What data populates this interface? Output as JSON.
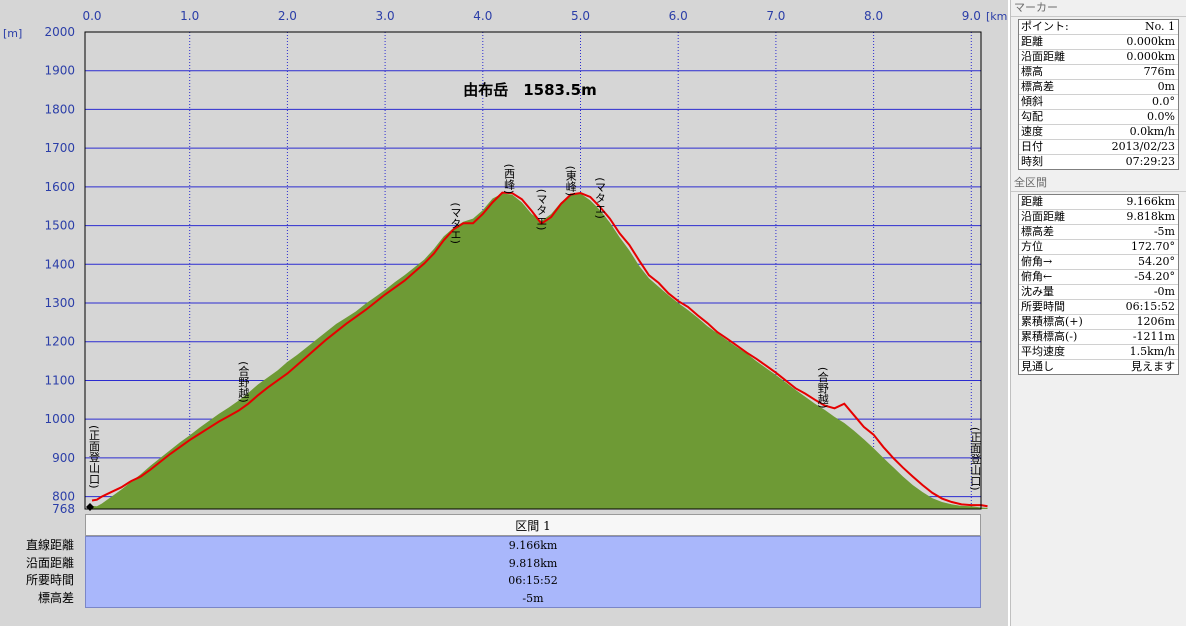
{
  "chart_data": {
    "type": "area",
    "title": "由布岳　1583.5m",
    "x_unit": "[km]",
    "y_unit": "[m]",
    "xlim": [
      0,
      9.166
    ],
    "ylim": [
      768,
      2000
    ],
    "x_ticks": [
      "0.0",
      "1.0",
      "2.0",
      "3.0",
      "4.0",
      "5.0",
      "6.0",
      "7.0",
      "8.0",
      "9.0"
    ],
    "y_ticks": [
      "2000",
      "1900",
      "1800",
      "1700",
      "1600",
      "1500",
      "1400",
      "1300",
      "1200",
      "1100",
      "1000",
      "900",
      "800"
    ],
    "y_min_label": "768",
    "grid": true,
    "series": [
      {
        "name": "",
        "color": "#6e9a35",
        "x": [
          0,
          0.05,
          0.1,
          0.2,
          0.3,
          0.4,
          0.5,
          0.6,
          0.7,
          0.8,
          0.9,
          1.0,
          1.1,
          1.2,
          1.3,
          1.4,
          1.5,
          1.6,
          1.7,
          1.8,
          1.9,
          2.0,
          2.1,
          2.2,
          2.3,
          2.4,
          2.5,
          2.6,
          2.7,
          2.8,
          2.9,
          3.0,
          3.1,
          3.2,
          3.3,
          3.4,
          3.5,
          3.6,
          3.7,
          3.8,
          3.9,
          4.0,
          4.1,
          4.2,
          4.3,
          4.4,
          4.5,
          4.6,
          4.7,
          4.8,
          4.9,
          5.0,
          5.1,
          5.2,
          5.3,
          5.4,
          5.5,
          5.6,
          5.7,
          5.8,
          5.9,
          6.0,
          6.1,
          6.2,
          6.3,
          6.4,
          6.5,
          6.6,
          6.7,
          6.8,
          6.9,
          7.0,
          7.1,
          7.2,
          7.3,
          7.4,
          7.5,
          7.6,
          7.7,
          7.8,
          7.9,
          8.0,
          8.1,
          8.2,
          8.3,
          8.4,
          8.5,
          8.6,
          8.7,
          8.8,
          8.9,
          9.0,
          9.1,
          9.166
        ],
        "y": [
          776,
          775,
          782,
          800,
          818,
          838,
          858,
          880,
          900,
          920,
          940,
          958,
          978,
          996,
          1014,
          1030,
          1048,
          1068,
          1090,
          1108,
          1126,
          1148,
          1166,
          1186,
          1206,
          1226,
          1246,
          1262,
          1278,
          1298,
          1316,
          1334,
          1354,
          1372,
          1392,
          1412,
          1440,
          1472,
          1494,
          1510,
          1518,
          1540,
          1570,
          1583,
          1580,
          1560,
          1530,
          1512,
          1530,
          1560,
          1580,
          1583,
          1565,
          1540,
          1508,
          1470,
          1436,
          1396,
          1364,
          1342,
          1320,
          1300,
          1282,
          1262,
          1240,
          1222,
          1204,
          1186,
          1170,
          1150,
          1132,
          1114,
          1095,
          1076,
          1058,
          1040,
          1024,
          1006,
          990,
          970,
          948,
          925,
          900,
          876,
          852,
          830,
          812,
          796,
          786,
          780,
          776,
          775,
          772,
          771
        ]
      },
      {
        "name": "",
        "color": "#e60000",
        "x": [
          0,
          0.05,
          0.1,
          0.2,
          0.3,
          0.4,
          0.5,
          0.6,
          0.7,
          0.8,
          0.9,
          1.0,
          1.1,
          1.2,
          1.3,
          1.4,
          1.5,
          1.6,
          1.7,
          1.8,
          1.9,
          2.0,
          2.1,
          2.2,
          2.3,
          2.4,
          2.5,
          2.6,
          2.7,
          2.8,
          2.9,
          3.0,
          3.1,
          3.2,
          3.3,
          3.4,
          3.5,
          3.6,
          3.7,
          3.8,
          3.9,
          4.0,
          4.1,
          4.2,
          4.3,
          4.4,
          4.5,
          4.6,
          4.7,
          4.8,
          4.9,
          5.0,
          5.1,
          5.2,
          5.3,
          5.4,
          5.5,
          5.6,
          5.7,
          5.8,
          5.9,
          6.0,
          6.1,
          6.2,
          6.3,
          6.4,
          6.5,
          6.6,
          6.7,
          6.8,
          6.9,
          7.0,
          7.1,
          7.2,
          7.3,
          7.4,
          7.5,
          7.6,
          7.7,
          7.8,
          7.9,
          8.0,
          8.1,
          8.2,
          8.3,
          8.4,
          8.5,
          8.6,
          8.7,
          8.8,
          8.9,
          9.0,
          9.1,
          9.166
        ],
        "y": [
          790,
          792,
          800,
          812,
          824,
          840,
          852,
          870,
          890,
          910,
          928,
          946,
          962,
          978,
          994,
          1008,
          1022,
          1040,
          1062,
          1082,
          1100,
          1118,
          1140,
          1162,
          1184,
          1206,
          1226,
          1246,
          1264,
          1282,
          1302,
          1322,
          1340,
          1358,
          1380,
          1402,
          1428,
          1462,
          1490,
          1506,
          1506,
          1530,
          1560,
          1585,
          1584,
          1568,
          1538,
          1505,
          1522,
          1556,
          1580,
          1584,
          1574,
          1548,
          1518,
          1480,
          1450,
          1410,
          1372,
          1352,
          1325,
          1305,
          1290,
          1268,
          1248,
          1225,
          1208,
          1190,
          1172,
          1156,
          1138,
          1120,
          1100,
          1080,
          1066,
          1050,
          1035,
          1028,
          1040,
          1010,
          980,
          960,
          928,
          900,
          875,
          852,
          830,
          810,
          795,
          786,
          780,
          778,
          778,
          775
        ]
      }
    ],
    "annotations": [
      {
        "text": "(正面登山口)",
        "x": 0.02,
        "y": 985
      },
      {
        "text": "(合野越)",
        "x": 1.55,
        "y": 1150
      },
      {
        "text": "(マタエ)",
        "x": 3.72,
        "y": 1560
      },
      {
        "text": "(西峰)",
        "x": 4.27,
        "y": 1660
      },
      {
        "text": "(マタエ)",
        "x": 4.6,
        "y": 1595
      },
      {
        "text": "(東峰)",
        "x": 4.9,
        "y": 1655
      },
      {
        "text": "(マタエ)",
        "x": 5.2,
        "y": 1625
      },
      {
        "text": "(合野越)",
        "x": 7.48,
        "y": 1135
      },
      {
        "text": "(正面登山口)",
        "x": 9.04,
        "y": 980
      }
    ]
  },
  "marker_panel": {
    "title": "マーカー",
    "rows": [
      {
        "label": "ポイント:",
        "value": "No. 1"
      },
      {
        "label": "距離",
        "value": "0.000km"
      },
      {
        "label": "沿面距離",
        "value": "0.000km"
      },
      {
        "label": "標高",
        "value": "776m"
      },
      {
        "label": "標高差",
        "value": "0m"
      },
      {
        "label": "傾斜",
        "value": "0.0°"
      },
      {
        "label": "勾配",
        "value": "0.0%"
      },
      {
        "label": "速度",
        "value": "0.0km/h"
      },
      {
        "label": "日付",
        "value": "2013/02/23"
      },
      {
        "label": "時刻",
        "value": "07:29:23"
      }
    ]
  },
  "total_panel": {
    "title": "全区間",
    "rows": [
      {
        "label": "距離",
        "value": "9.166km"
      },
      {
        "label": "沿面距離",
        "value": "9.818km"
      },
      {
        "label": "標高差",
        "value": "-5m"
      },
      {
        "label": "方位",
        "value": "172.70°"
      },
      {
        "label": "俯角→",
        "value": "54.20°"
      },
      {
        "label": "俯角←",
        "value": "-54.20°"
      },
      {
        "label": "沈み量",
        "value": "-0m"
      },
      {
        "label": "所要時間",
        "value": "06:15:52"
      },
      {
        "label": "累積標高(+)",
        "value": "1206m"
      },
      {
        "label": "累積標高(-)",
        "value": "-1211m"
      },
      {
        "label": "平均速度",
        "value": "1.5km/h"
      },
      {
        "label": "見通し",
        "value": "見えます"
      }
    ]
  },
  "section": {
    "header": "区間 1",
    "labels": [
      "直線距離",
      "沿面距離",
      "所要時間",
      "標高差"
    ],
    "values": [
      "9.166km",
      "9.818km",
      "06:15:52",
      "-5m"
    ]
  }
}
